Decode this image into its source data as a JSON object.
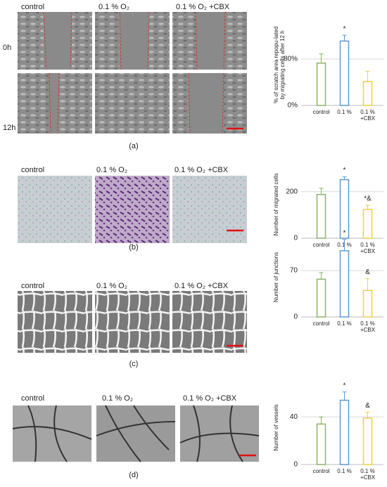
{
  "panels": [
    {
      "label": "(a)",
      "columns": [
        "control",
        "0.1 % O₂",
        "0.1 % O₂ +CBX"
      ],
      "rows": [
        "0h",
        "12h"
      ]
    },
    {
      "label": "(b)",
      "columns": [
        "control",
        "0.1 % O₂",
        "0.1 % O₂ +CBX"
      ]
    },
    {
      "label": "(c)",
      "columns": [
        "control",
        "0.1 % O₂",
        "0.1 % O₂ +CBX"
      ]
    },
    {
      "label": "(d)",
      "columns": [
        "control",
        "0.1 % O₂",
        "0.1 % O₂ +CBX"
      ]
    }
  ],
  "chart_data": [
    {
      "type": "bar",
      "y_label": "% of scratch area repopu-lated by migrating cells after 12 h",
      "categories": [
        "control",
        "0.1 %",
        "0.1 % +CBX"
      ],
      "values": [
        73,
        111,
        41
      ],
      "errors": [
        16,
        10,
        18
      ],
      "colors": [
        "#8db36a",
        "#5b9bd5",
        "#f2cf3c"
      ],
      "markers": [
        null,
        "*",
        null
      ],
      "ylim": [
        0,
        140
      ],
      "yticks": [
        {
          "value": 0,
          "label": "0%"
        },
        {
          "value": 80,
          "label": "80%"
        }
      ],
      "grid": true
    },
    {
      "type": "bar",
      "y_label": "Number of migrated cells",
      "categories": [
        "control",
        "0.1 %",
        "0.1 % +CBX"
      ],
      "values": [
        188,
        252,
        124
      ],
      "errors": [
        27,
        12,
        18
      ],
      "colors": [
        "#8db36a",
        "#5b9bd5",
        "#f2cf3c"
      ],
      "markers": [
        null,
        "*",
        "*&"
      ],
      "ylim": [
        0,
        290
      ],
      "yticks": [
        0,
        200
      ],
      "grid": true
    },
    {
      "type": "bar",
      "y_label": "Number of junctions",
      "categories": [
        "control",
        "0.1 %",
        "0.1 % +CBX"
      ],
      "values": [
        57,
        100,
        40
      ],
      "errors": [
        10,
        17,
        18
      ],
      "colors": [
        "#8db36a",
        "#5b9bd5",
        "#f2cf3c"
      ],
      "markers": [
        null,
        "*",
        "&"
      ],
      "ylim": [
        0,
        120
      ],
      "yticks": [
        0,
        70
      ],
      "grid": true
    },
    {
      "type": "bar",
      "y_label": "Number of vessels",
      "categories": [
        "control",
        "0.1 %",
        "0.1 % +CBX"
      ],
      "values": [
        34,
        54,
        39
      ],
      "errors": [
        6,
        7,
        5
      ],
      "colors": [
        "#8db36a",
        "#5b9bd5",
        "#f2cf3c"
      ],
      "markers": [
        null,
        "*",
        "&"
      ],
      "ylim": [
        0,
        62
      ],
      "yticks": [
        0,
        40
      ],
      "grid": true
    }
  ]
}
